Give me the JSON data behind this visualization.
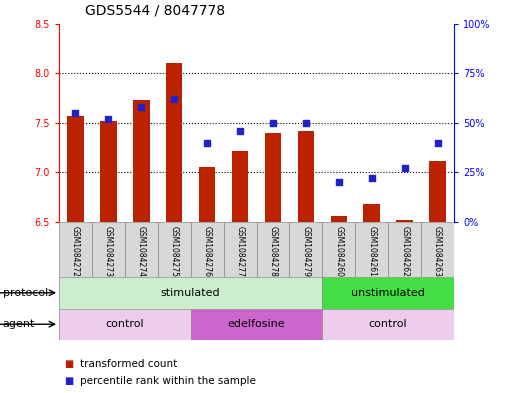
{
  "title": "GDS5544 / 8047778",
  "samples": [
    "GSM1084272",
    "GSM1084273",
    "GSM1084274",
    "GSM1084275",
    "GSM1084276",
    "GSM1084277",
    "GSM1084278",
    "GSM1084279",
    "GSM1084260",
    "GSM1084261",
    "GSM1084262",
    "GSM1084263"
  ],
  "transformed_count": [
    7.57,
    7.52,
    7.73,
    8.1,
    7.05,
    7.22,
    7.4,
    7.42,
    6.56,
    6.68,
    6.52,
    7.12
  ],
  "percentile_rank": [
    55,
    52,
    58,
    62,
    40,
    46,
    50,
    50,
    20,
    22,
    27,
    40
  ],
  "ylim_left": [
    6.5,
    8.5
  ],
  "ylim_right": [
    0,
    100
  ],
  "yticks_left": [
    6.5,
    7.0,
    7.5,
    8.0,
    8.5
  ],
  "yticks_right": [
    0,
    25,
    50,
    75,
    100
  ],
  "ytick_labels_right": [
    "0%",
    "25%",
    "50%",
    "75%",
    "100%"
  ],
  "bar_color": "#bb2200",
  "dot_color": "#2222cc",
  "bar_bottom": 6.5,
  "gridline_values": [
    7.0,
    7.5,
    8.0
  ],
  "protocol_groups": [
    {
      "label": "stimulated",
      "start": 0,
      "end": 8,
      "color": "#cceecc"
    },
    {
      "label": "unstimulated",
      "start": 8,
      "end": 12,
      "color": "#44dd44"
    }
  ],
  "agent_groups": [
    {
      "label": "control",
      "start": 0,
      "end": 4,
      "color": "#eeccee"
    },
    {
      "label": "edelfosine",
      "start": 4,
      "end": 8,
      "color": "#cc66cc"
    },
    {
      "label": "control",
      "start": 8,
      "end": 12,
      "color": "#eeccee"
    }
  ],
  "legend_bar_label": "transformed count",
  "legend_dot_label": "percentile rank within the sample",
  "protocol_label": "protocol",
  "agent_label": "agent",
  "background_color": "#ffffff",
  "title_fontsize": 10,
  "tick_fontsize": 7,
  "sample_fontsize": 5.5,
  "row_fontsize": 8,
  "legend_fontsize": 7.5
}
